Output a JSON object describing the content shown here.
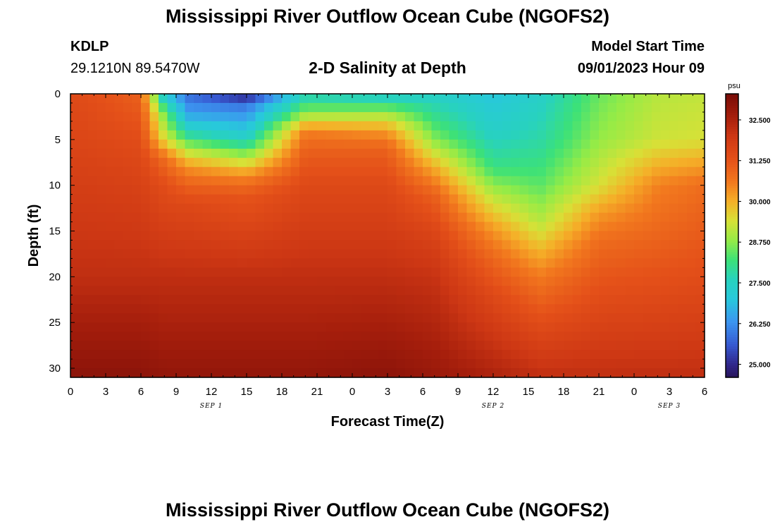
{
  "header": {
    "title": "Mississippi River Outflow Ocean Cube (NGOFS2)",
    "station_id": "KDLP",
    "station_coords": "29.1210N  89.5470W",
    "subtitle": "2-D Salinity at Depth",
    "model_start_label": "Model Start Time",
    "model_start_value": "09/01/2023 Hour 09"
  },
  "footer": {
    "title": "Mississippi River Outflow Ocean Cube (NGOFS2)"
  },
  "chart_data": {
    "type": "heatmap",
    "title": "2-D Salinity at Depth",
    "xlabel": "Forecast Time(Z)",
    "ylabel": "Depth (ft)",
    "x_range_hours": [
      0,
      54
    ],
    "y_range_ft": [
      0,
      31
    ],
    "x_tick_labels": [
      "0",
      "3",
      "6",
      "9",
      "12",
      "15",
      "18",
      "21",
      "0",
      "3",
      "6",
      "9",
      "12",
      "15",
      "18",
      "21",
      "0",
      "3",
      "6"
    ],
    "y_tick_labels": [
      "0",
      "5",
      "10",
      "15",
      "20",
      "25",
      "30"
    ],
    "date_labels": [
      {
        "text": "SEP 1",
        "hour": 12
      },
      {
        "text": "SEP 2",
        "hour": 36
      },
      {
        "text": "SEP 3",
        "hour": 51
      }
    ],
    "colorbar": {
      "unit": "psu",
      "min": 24.6,
      "max": 33.3,
      "tick_labels": [
        "32.500",
        "31.250",
        "30.000",
        "28.750",
        "27.500",
        "26.250",
        "25.000"
      ],
      "tick_values": [
        32.5,
        31.25,
        30.0,
        28.75,
        27.5,
        26.25,
        25.0
      ]
    },
    "salinity_profiles": [
      {
        "hour": 0,
        "depths": [
          0,
          5,
          10,
          20,
          25,
          31
        ],
        "values": [
          31.5,
          31.6,
          31.8,
          32.2,
          32.6,
          33.0
        ]
      },
      {
        "hour": 6,
        "depths": [
          0,
          5,
          10,
          20,
          25,
          31
        ],
        "values": [
          31.0,
          31.4,
          31.7,
          32.2,
          32.6,
          33.0
        ]
      },
      {
        "hour": 8,
        "depths": [
          0,
          2,
          5,
          7,
          10,
          15,
          20,
          31
        ],
        "values": [
          27.0,
          28.5,
          29.5,
          30.8,
          31.4,
          31.8,
          32.2,
          32.9
        ]
      },
      {
        "hour": 10,
        "depths": [
          0,
          2,
          4,
          6,
          8,
          10,
          12,
          20,
          31
        ],
        "values": [
          25.8,
          26.4,
          27.5,
          29.0,
          30.3,
          31.0,
          31.5,
          32.2,
          32.9
        ]
      },
      {
        "hour": 15,
        "depths": [
          0,
          1,
          3,
          5,
          7,
          9,
          11,
          20,
          31
        ],
        "values": [
          24.6,
          25.8,
          26.6,
          27.5,
          29.0,
          30.4,
          31.2,
          32.2,
          32.9
        ]
      },
      {
        "hour": 20,
        "depths": [
          0,
          2,
          3,
          4,
          6,
          10,
          20,
          31
        ],
        "values": [
          27.5,
          28.7,
          29.5,
          30.5,
          31.0,
          31.5,
          32.2,
          32.9
        ]
      },
      {
        "hour": 27,
        "depths": [
          0,
          2,
          4,
          6,
          10,
          20,
          31
        ],
        "values": [
          27.2,
          28.8,
          30.2,
          31.0,
          31.5,
          32.2,
          33.0
        ]
      },
      {
        "hour": 31,
        "depths": [
          0,
          2,
          5,
          8,
          11,
          15,
          20,
          31
        ],
        "values": [
          27.4,
          27.9,
          28.7,
          30.0,
          31.0,
          31.6,
          32.1,
          32.8
        ]
      },
      {
        "hour": 36,
        "depths": [
          0,
          4,
          8,
          12,
          15,
          18,
          22,
          31
        ],
        "values": [
          27.0,
          27.4,
          28.1,
          29.4,
          30.3,
          30.9,
          31.5,
          32.5
        ]
      },
      {
        "hour": 40,
        "depths": [
          0,
          5,
          10,
          14,
          17,
          20,
          25,
          31
        ],
        "values": [
          27.4,
          27.8,
          28.4,
          29.1,
          29.9,
          30.6,
          31.4,
          32.2
        ]
      },
      {
        "hour": 45,
        "depths": [
          0,
          5,
          10,
          13,
          16,
          20,
          31
        ],
        "values": [
          28.5,
          28.8,
          29.4,
          30.2,
          30.8,
          31.2,
          32.2
        ]
      },
      {
        "hour": 50,
        "depths": [
          0,
          5,
          10,
          20,
          31
        ],
        "values": [
          29.1,
          29.3,
          30.5,
          31.3,
          32.2
        ]
      },
      {
        "hour": 54,
        "depths": [
          0,
          5,
          10,
          20,
          31
        ],
        "values": [
          29.2,
          29.4,
          30.8,
          31.4,
          32.2
        ]
      }
    ]
  }
}
